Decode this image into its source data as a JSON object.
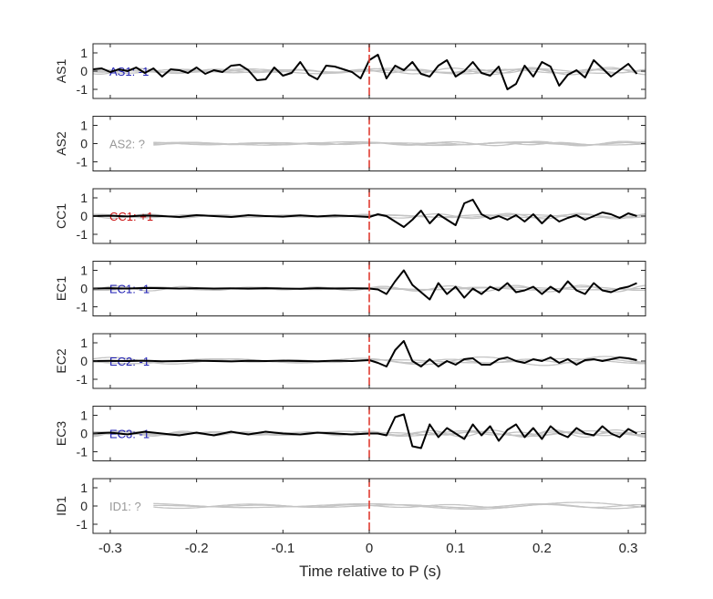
{
  "chart_data": {
    "type": "line",
    "xlabel": "Time relative to P (s)",
    "xlim": [
      -0.32,
      0.32
    ],
    "xticks": [
      -0.3,
      -0.2,
      -0.1,
      0,
      0.1,
      0.2,
      0.3
    ],
    "xtick_labels": [
      "-0.3",
      "-0.2",
      "-0.1",
      "0",
      "0.1",
      "0.2",
      "0.3"
    ],
    "ylim": [
      -1.5,
      1.5
    ],
    "yticks": [
      -1,
      0,
      1
    ],
    "ytick_labels": [
      "-1",
      "0",
      "1"
    ],
    "marker_line_x": 0,
    "marker_line_color": "#e03c31",
    "trace_color": "#000000",
    "background_trace_color": "#c4c4c4",
    "panels": [
      {
        "ylabel": "AS1",
        "label": "AS1: -1",
        "label_color": "#1f1fb4",
        "has_trace": true,
        "trace": {
          "x": [
            -0.32,
            -0.31,
            -0.3,
            -0.29,
            -0.28,
            -0.27,
            -0.26,
            -0.25,
            -0.24,
            -0.23,
            -0.22,
            -0.21,
            -0.2,
            -0.19,
            -0.18,
            -0.17,
            -0.16,
            -0.15,
            -0.14,
            -0.13,
            -0.12,
            -0.11,
            -0.1,
            -0.09,
            -0.08,
            -0.07,
            -0.06,
            -0.05,
            -0.04,
            -0.03,
            -0.02,
            -0.01,
            0,
            0.01,
            0.02,
            0.03,
            0.04,
            0.05,
            0.06,
            0.07,
            0.08,
            0.09,
            0.1,
            0.11,
            0.12,
            0.13,
            0.14,
            0.15,
            0.16,
            0.17,
            0.18,
            0.19,
            0.2,
            0.21,
            0.22,
            0.23,
            0.24,
            0.25,
            0.26,
            0.27,
            0.28,
            0.29,
            0.3,
            0.31
          ],
          "y": [
            0.1,
            0.15,
            -0.05,
            0.1,
            0.0,
            0.2,
            -0.1,
            0.15,
            -0.3,
            0.1,
            0.05,
            -0.1,
            0.2,
            -0.15,
            0.05,
            -0.05,
            0.3,
            0.35,
            0.05,
            -0.5,
            -0.45,
            0.2,
            -0.25,
            -0.1,
            0.5,
            -0.2,
            -0.45,
            0.3,
            0.25,
            0.1,
            -0.05,
            -0.4,
            0.6,
            0.9,
            -0.4,
            0.3,
            0.05,
            0.5,
            -0.15,
            -0.3,
            0.3,
            0.6,
            -0.3,
            0.0,
            0.5,
            -0.1,
            -0.25,
            0.25,
            -1.0,
            -0.7,
            0.3,
            -0.3,
            0.5,
            0.25,
            -0.8,
            -0.2,
            0.05,
            -0.35,
            0.6,
            0.15,
            -0.3,
            0.05,
            0.4,
            -0.15
          ]
        },
        "background_curves": [
          {
            "amp": 0.12,
            "freq": 8,
            "phase": 0.0
          },
          {
            "amp": 0.2,
            "freq": 11,
            "phase": 1.2
          },
          {
            "amp": 0.1,
            "freq": 15,
            "phase": 2.5
          },
          {
            "amp": 0.15,
            "freq": 6,
            "phase": 0.7
          }
        ]
      },
      {
        "ylabel": "AS2",
        "label": "AS2: ?",
        "label_color": "#999999",
        "has_trace": false,
        "background_curves": [
          {
            "amp": 0.08,
            "freq": 7,
            "phase": 0.3
          },
          {
            "amp": 0.12,
            "freq": 10,
            "phase": 1.9
          },
          {
            "amp": 0.06,
            "freq": 14,
            "phase": 0.9
          },
          {
            "amp": 0.1,
            "freq": 5,
            "phase": 2.2
          }
        ]
      },
      {
        "ylabel": "CC1",
        "label": "CC1: +1",
        "label_color": "#cc1010",
        "has_trace": true,
        "trace": {
          "x": [
            -0.32,
            -0.3,
            -0.28,
            -0.26,
            -0.24,
            -0.22,
            -0.2,
            -0.18,
            -0.16,
            -0.14,
            -0.12,
            -0.1,
            -0.08,
            -0.06,
            -0.04,
            -0.02,
            0,
            0.01,
            0.02,
            0.03,
            0.04,
            0.05,
            0.06,
            0.07,
            0.08,
            0.09,
            0.1,
            0.11,
            0.12,
            0.13,
            0.14,
            0.15,
            0.16,
            0.17,
            0.18,
            0.19,
            0.2,
            0.21,
            0.22,
            0.23,
            0.24,
            0.25,
            0.26,
            0.27,
            0.28,
            0.29,
            0.3,
            0.31
          ],
          "y": [
            0.0,
            0.02,
            -0.02,
            0.03,
            0.0,
            -0.05,
            0.05,
            0.0,
            -0.05,
            0.05,
            0.0,
            -0.03,
            0.04,
            -0.02,
            0.03,
            0.0,
            -0.05,
            0.1,
            0.0,
            -0.3,
            -0.6,
            -0.2,
            0.3,
            -0.4,
            0.1,
            -0.2,
            -0.5,
            0.7,
            0.9,
            0.1,
            -0.15,
            0.0,
            -0.2,
            0.05,
            -0.3,
            0.1,
            -0.4,
            0.05,
            -0.3,
            -0.1,
            0.05,
            -0.2,
            0.0,
            0.2,
            0.1,
            -0.1,
            0.15,
            0.0
          ]
        },
        "background_curves": [
          {
            "amp": 0.1,
            "freq": 9,
            "phase": 0.5
          },
          {
            "amp": 0.15,
            "freq": 12,
            "phase": 2.0
          },
          {
            "amp": 0.08,
            "freq": 6,
            "phase": 1.1
          }
        ]
      },
      {
        "ylabel": "EC1",
        "label": "EC1: -1",
        "label_color": "#1f1fb4",
        "has_trace": true,
        "trace": {
          "x": [
            -0.32,
            -0.3,
            -0.28,
            -0.26,
            -0.24,
            -0.22,
            -0.2,
            -0.18,
            -0.16,
            -0.14,
            -0.12,
            -0.1,
            -0.08,
            -0.06,
            -0.04,
            -0.02,
            0,
            0.01,
            0.02,
            0.03,
            0.04,
            0.05,
            0.06,
            0.07,
            0.08,
            0.09,
            0.1,
            0.11,
            0.12,
            0.13,
            0.14,
            0.15,
            0.16,
            0.17,
            0.18,
            0.19,
            0.2,
            0.21,
            0.22,
            0.23,
            0.24,
            0.25,
            0.26,
            0.27,
            0.28,
            0.29,
            0.3,
            0.31
          ],
          "y": [
            0.0,
            0.02,
            0.0,
            0.03,
            0.02,
            0.0,
            0.02,
            0.0,
            0.01,
            0.0,
            0.02,
            0.0,
            -0.01,
            0.02,
            0.0,
            0.01,
            0.0,
            -0.05,
            -0.3,
            0.4,
            1.0,
            0.2,
            -0.2,
            -0.6,
            0.3,
            -0.3,
            0.1,
            -0.5,
            0.0,
            -0.3,
            0.1,
            -0.1,
            0.3,
            -0.2,
            -0.1,
            0.1,
            -0.3,
            0.1,
            -0.2,
            0.4,
            -0.1,
            -0.3,
            0.3,
            -0.1,
            -0.2,
            0.0,
            0.1,
            0.3
          ]
        },
        "background_curves": [
          {
            "amp": 0.1,
            "freq": 8,
            "phase": 1.5
          },
          {
            "amp": 0.18,
            "freq": 13,
            "phase": 0.3
          },
          {
            "amp": 0.07,
            "freq": 5,
            "phase": 2.7
          }
        ]
      },
      {
        "ylabel": "EC2",
        "label": "EC2: -1",
        "label_color": "#1f1fb4",
        "has_trace": true,
        "trace": {
          "x": [
            -0.32,
            -0.3,
            -0.28,
            -0.26,
            -0.24,
            -0.22,
            -0.2,
            -0.18,
            -0.16,
            -0.14,
            -0.12,
            -0.1,
            -0.08,
            -0.06,
            -0.04,
            -0.02,
            0,
            0.01,
            0.02,
            0.03,
            0.04,
            0.05,
            0.06,
            0.07,
            0.08,
            0.09,
            0.1,
            0.11,
            0.12,
            0.13,
            0.14,
            0.15,
            0.16,
            0.17,
            0.18,
            0.19,
            0.2,
            0.21,
            0.22,
            0.23,
            0.24,
            0.25,
            0.26,
            0.27,
            0.28,
            0.29,
            0.3,
            0.31
          ],
          "y": [
            0.0,
            0.01,
            0.0,
            0.02,
            -0.01,
            0.0,
            0.02,
            0.0,
            -0.02,
            0.01,
            0.0,
            0.02,
            0.0,
            -0.01,
            0.02,
            0.0,
            0.05,
            -0.1,
            -0.3,
            0.6,
            1.1,
            0.0,
            -0.3,
            0.1,
            -0.3,
            0.0,
            -0.2,
            0.1,
            0.15,
            -0.2,
            -0.2,
            0.1,
            0.2,
            0.0,
            -0.1,
            0.1,
            0.0,
            0.2,
            -0.1,
            0.1,
            -0.2,
            0.05,
            0.1,
            0.0,
            0.1,
            0.2,
            0.15,
            0.05
          ]
        },
        "background_curves": [
          {
            "amp": 0.15,
            "freq": 5,
            "phase": 0.8
          },
          {
            "amp": 0.25,
            "freq": 7,
            "phase": 2.1
          },
          {
            "amp": 0.1,
            "freq": 11,
            "phase": 1.4
          }
        ]
      },
      {
        "ylabel": "EC3",
        "label": "EC3: -1",
        "label_color": "#1f1fb4",
        "has_trace": true,
        "trace": {
          "x": [
            -0.32,
            -0.3,
            -0.28,
            -0.26,
            -0.24,
            -0.22,
            -0.2,
            -0.18,
            -0.16,
            -0.14,
            -0.12,
            -0.1,
            -0.08,
            -0.06,
            -0.04,
            -0.02,
            0,
            0.01,
            0.02,
            0.03,
            0.04,
            0.05,
            0.06,
            0.07,
            0.08,
            0.09,
            0.1,
            0.11,
            0.12,
            0.13,
            0.14,
            0.15,
            0.16,
            0.17,
            0.18,
            0.19,
            0.2,
            0.21,
            0.22,
            0.23,
            0.24,
            0.25,
            0.26,
            0.27,
            0.28,
            0.29,
            0.3,
            0.31
          ],
          "y": [
            0.0,
            0.05,
            -0.05,
            0.1,
            0.0,
            -0.1,
            0.05,
            -0.1,
            0.1,
            -0.05,
            0.1,
            0.0,
            -0.05,
            0.05,
            0.0,
            -0.05,
            0.0,
            0.0,
            -0.1,
            0.9,
            1.05,
            -0.7,
            -0.8,
            0.5,
            -0.2,
            0.3,
            0.0,
            -0.3,
            0.5,
            -0.1,
            0.4,
            -0.4,
            0.2,
            0.5,
            -0.2,
            0.3,
            -0.3,
            0.4,
            0.0,
            -0.2,
            0.3,
            0.0,
            -0.1,
            0.4,
            0.0,
            -0.2,
            0.25,
            0.0
          ]
        },
        "background_curves": [
          {
            "amp": 0.12,
            "freq": 10,
            "phase": 0.2
          },
          {
            "amp": 0.2,
            "freq": 14,
            "phase": 1.6
          },
          {
            "amp": 0.15,
            "freq": 7,
            "phase": 2.9
          },
          {
            "amp": 0.08,
            "freq": 18,
            "phase": 0.9
          }
        ]
      },
      {
        "ylabel": "ID1",
        "label": "ID1: ?",
        "label_color": "#999999",
        "has_trace": false,
        "background_curves": [
          {
            "amp": 0.15,
            "freq": 6,
            "phase": 0.4
          },
          {
            "amp": 0.2,
            "freq": 4,
            "phase": 1.8
          },
          {
            "amp": 0.08,
            "freq": 9,
            "phase": 2.6
          }
        ]
      }
    ]
  }
}
